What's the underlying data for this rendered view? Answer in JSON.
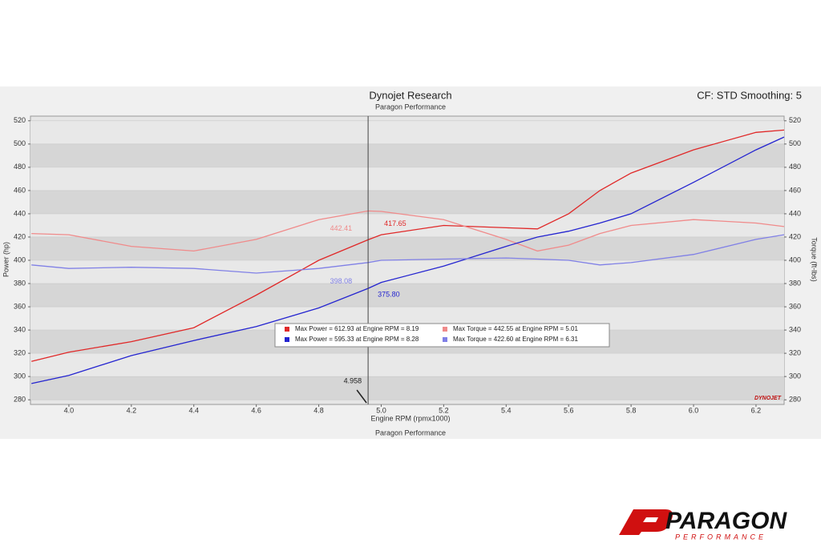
{
  "chart_data": {
    "type": "line",
    "title": "Dynojet Research",
    "subtitle": "Paragon Performance",
    "settings_label": "CF: STD Smoothing: 5",
    "xlabel": "Engine RPM (rpmx1000)",
    "ylabel": "Power (hp)",
    "y2label": "Torque (ft-lbs)",
    "footer": "Paragon Performance",
    "brand": "DYNOJET",
    "x": [
      3.88,
      4.0,
      4.2,
      4.4,
      4.6,
      4.8,
      4.958,
      5.0,
      5.2,
      5.4,
      5.5,
      5.6,
      5.7,
      5.8,
      6.0,
      6.2,
      6.29
    ],
    "series": [
      {
        "name": "Max Power = 612.93 at Engine RPM = 8.19",
        "color": "#e02828",
        "values": [
          313,
          321,
          330,
          342,
          370,
          400,
          417.65,
          422,
          430,
          428,
          427,
          440,
          460,
          475,
          495,
          510,
          512
        ]
      },
      {
        "name": "Max Torque = 442.55 at Engine RPM = 5.01",
        "color": "#f08a8a",
        "axis": "y2",
        "values": [
          423,
          422,
          412,
          408,
          418,
          435,
          442.41,
          442,
          435,
          418,
          408,
          413,
          423,
          430,
          435,
          432,
          429
        ]
      },
      {
        "name": "Max Power = 595.33 at Engine RPM = 8.28",
        "color": "#2424d0",
        "values": [
          294,
          301,
          318,
          331,
          343,
          359,
          375.8,
          381,
          395,
          412,
          420,
          425,
          432,
          440,
          467,
          495,
          506
        ]
      },
      {
        "name": "Max Torque = 422.60 at Engine RPM = 6.31",
        "color": "#8080e6",
        "axis": "y2",
        "values": [
          396,
          393,
          394,
          393,
          389,
          393,
          398.08,
          400,
          401,
          402,
          401,
          400,
          396,
          398,
          405,
          418,
          422
        ]
      }
    ],
    "cursor": 4.958,
    "readouts": [
      {
        "value": 442.41,
        "color": "#f08a8a"
      },
      {
        "value": 417.65,
        "color": "#e02828"
      },
      {
        "value": 398.08,
        "color": "#8080e6"
      },
      {
        "value": 375.8,
        "label": "375.80",
        "color": "#2424d0"
      }
    ],
    "xlim": [
      3.877,
      6.29
    ],
    "xticks": [
      {
        "value": 4,
        "label": "4.0"
      },
      4.2,
      4.4,
      4.6,
      4.8,
      {
        "value": 5,
        "label": "5.0"
      },
      5.2,
      5.4,
      5.6,
      5.8,
      {
        "value": 6,
        "label": "6.0"
      },
      6.2
    ],
    "ylim": [
      276,
      524
    ],
    "yticks": [
      280,
      300,
      320,
      340,
      360,
      380,
      400,
      420,
      440,
      460,
      480,
      500,
      520
    ],
    "y2lim": [
      276,
      524
    ],
    "y2ticks": [
      280,
      300,
      320,
      340,
      360,
      380,
      400,
      420,
      440,
      460,
      480,
      500,
      520
    ],
    "grid": true
  },
  "logo": {
    "text": "PARAGON",
    "tagline": "PERFORMANCE"
  }
}
